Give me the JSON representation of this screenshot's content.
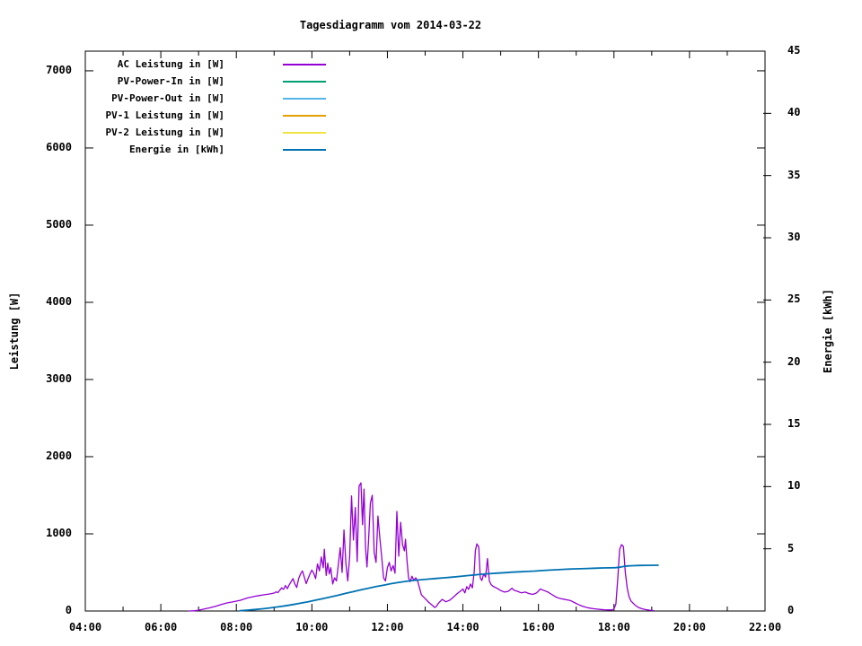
{
  "chart_data": {
    "type": "line",
    "title": "Tagesdiagramm vom 2014-03-22",
    "x_axis": {
      "range_hours": [
        4,
        22
      ],
      "major_tick_step_hours": 2,
      "minor_tick_step_hours": 1,
      "tick_labels": [
        "04:00",
        "06:00",
        "08:00",
        "10:00",
        "12:00",
        "14:00",
        "16:00",
        "18:00",
        "20:00",
        "22:00"
      ]
    },
    "y1_axis": {
      "title": "Leistung [W]",
      "range": [
        0,
        7255
      ],
      "tick_step": 1000,
      "tick_labels": [
        "0",
        "1000",
        "2000",
        "3000",
        "4000",
        "5000",
        "6000",
        "7000"
      ]
    },
    "y2_axis": {
      "title": "Energie [kWh]",
      "range": [
        0,
        45
      ],
      "tick_step": 5,
      "tick_labels": [
        "0",
        "5",
        "10",
        "15",
        "20",
        "25",
        "30",
        "35",
        "40",
        "45"
      ]
    },
    "legend": {
      "position": "top-left-inside",
      "entries": [
        {
          "label": "AC Leistung in [W]",
          "color": "#9400d3"
        },
        {
          "label": "PV-Power-In in [W]",
          "color": "#009e73"
        },
        {
          "label": "PV-Power-Out in [W]",
          "color": "#56b4e9"
        },
        {
          "label": "PV-1 Leistung in [W]",
          "color": "#e69f00"
        },
        {
          "label": "PV-2 Leistung in [W]",
          "color": "#f0e442"
        },
        {
          "label": "Energie in [kWh]",
          "color": "#0072b2"
        }
      ]
    },
    "series": [
      {
        "name": "AC Leistung in [W]",
        "axis": "y1",
        "color": "#9400d3",
        "points": [
          [
            6.75,
            0
          ],
          [
            6.9,
            4
          ],
          [
            7.0,
            10
          ],
          [
            7.15,
            25
          ],
          [
            7.3,
            42
          ],
          [
            7.45,
            62
          ],
          [
            7.6,
            85
          ],
          [
            7.75,
            105
          ],
          [
            7.9,
            118
          ],
          [
            8.0,
            128
          ],
          [
            8.1,
            138
          ],
          [
            8.2,
            155
          ],
          [
            8.3,
            170
          ],
          [
            8.4,
            180
          ],
          [
            8.5,
            192
          ],
          [
            8.6,
            200
          ],
          [
            8.7,
            208
          ],
          [
            8.8,
            215
          ],
          [
            8.9,
            222
          ],
          [
            9.0,
            232
          ],
          [
            9.05,
            248
          ],
          [
            9.1,
            238
          ],
          [
            9.15,
            268
          ],
          [
            9.2,
            300
          ],
          [
            9.25,
            280
          ],
          [
            9.3,
            330
          ],
          [
            9.35,
            290
          ],
          [
            9.4,
            340
          ],
          [
            9.45,
            380
          ],
          [
            9.5,
            420
          ],
          [
            9.55,
            350
          ],
          [
            9.6,
            305
          ],
          [
            9.65,
            420
          ],
          [
            9.7,
            480
          ],
          [
            9.75,
            520
          ],
          [
            9.8,
            440
          ],
          [
            9.85,
            355
          ],
          [
            9.9,
            420
          ],
          [
            9.95,
            480
          ],
          [
            10.0,
            530
          ],
          [
            10.05,
            490
          ],
          [
            10.1,
            420
          ],
          [
            10.15,
            610
          ],
          [
            10.2,
            520
          ],
          [
            10.25,
            700
          ],
          [
            10.3,
            560
          ],
          [
            10.33,
            800
          ],
          [
            10.38,
            460
          ],
          [
            10.42,
            620
          ],
          [
            10.46,
            480
          ],
          [
            10.5,
            560
          ],
          [
            10.55,
            350
          ],
          [
            10.6,
            430
          ],
          [
            10.65,
            390
          ],
          [
            10.7,
            600
          ],
          [
            10.75,
            820
          ],
          [
            10.8,
            500
          ],
          [
            10.85,
            1050
          ],
          [
            10.9,
            620
          ],
          [
            10.95,
            390
          ],
          [
            11.0,
            700
          ],
          [
            11.05,
            1490
          ],
          [
            11.1,
            920
          ],
          [
            11.15,
            1340
          ],
          [
            11.2,
            640
          ],
          [
            11.25,
            1620
          ],
          [
            11.3,
            1660
          ],
          [
            11.34,
            1120
          ],
          [
            11.38,
            1580
          ],
          [
            11.42,
            820
          ],
          [
            11.46,
            570
          ],
          [
            11.5,
            900
          ],
          [
            11.55,
            1400
          ],
          [
            11.6,
            1500
          ],
          [
            11.65,
            760
          ],
          [
            11.7,
            630
          ],
          [
            11.75,
            1230
          ],
          [
            11.8,
            950
          ],
          [
            11.85,
            700
          ],
          [
            11.9,
            430
          ],
          [
            11.95,
            390
          ],
          [
            12.0,
            560
          ],
          [
            12.05,
            630
          ],
          [
            12.1,
            520
          ],
          [
            12.15,
            590
          ],
          [
            12.2,
            490
          ],
          [
            12.25,
            1290
          ],
          [
            12.3,
            710
          ],
          [
            12.35,
            1150
          ],
          [
            12.4,
            860
          ],
          [
            12.45,
            780
          ],
          [
            12.48,
            930
          ],
          [
            12.52,
            650
          ],
          [
            12.56,
            430
          ],
          [
            12.6,
            380
          ],
          [
            12.65,
            450
          ],
          [
            12.7,
            400
          ],
          [
            12.75,
            430
          ],
          [
            12.8,
            390
          ],
          [
            12.85,
            300
          ],
          [
            12.9,
            210
          ],
          [
            13.0,
            160
          ],
          [
            13.1,
            110
          ],
          [
            13.2,
            70
          ],
          [
            13.25,
            45
          ],
          [
            13.3,
            60
          ],
          [
            13.35,
            100
          ],
          [
            13.45,
            150
          ],
          [
            13.55,
            120
          ],
          [
            13.65,
            140
          ],
          [
            13.75,
            180
          ],
          [
            13.85,
            225
          ],
          [
            13.95,
            265
          ],
          [
            14.0,
            285
          ],
          [
            14.05,
            235
          ],
          [
            14.1,
            315
          ],
          [
            14.15,
            280
          ],
          [
            14.2,
            350
          ],
          [
            14.25,
            300
          ],
          [
            14.3,
            520
          ],
          [
            14.33,
            780
          ],
          [
            14.37,
            870
          ],
          [
            14.42,
            830
          ],
          [
            14.46,
            430
          ],
          [
            14.5,
            395
          ],
          [
            14.55,
            480
          ],
          [
            14.6,
            440
          ],
          [
            14.65,
            680
          ],
          [
            14.7,
            390
          ],
          [
            14.75,
            340
          ],
          [
            14.8,
            320
          ],
          [
            14.9,
            295
          ],
          [
            15.0,
            265
          ],
          [
            15.1,
            245
          ],
          [
            15.2,
            255
          ],
          [
            15.3,
            295
          ],
          [
            15.35,
            270
          ],
          [
            15.45,
            255
          ],
          [
            15.55,
            235
          ],
          [
            15.65,
            245
          ],
          [
            15.75,
            225
          ],
          [
            15.85,
            215
          ],
          [
            15.95,
            235
          ],
          [
            16.05,
            285
          ],
          [
            16.15,
            265
          ],
          [
            16.25,
            245
          ],
          [
            16.35,
            215
          ],
          [
            16.45,
            185
          ],
          [
            16.55,
            165
          ],
          [
            16.65,
            155
          ],
          [
            16.75,
            145
          ],
          [
            16.85,
            135
          ],
          [
            16.95,
            110
          ],
          [
            17.05,
            85
          ],
          [
            17.15,
            65
          ],
          [
            17.25,
            50
          ],
          [
            17.35,
            38
          ],
          [
            17.45,
            30
          ],
          [
            17.55,
            24
          ],
          [
            17.65,
            20
          ],
          [
            17.75,
            16
          ],
          [
            17.85,
            14
          ],
          [
            17.95,
            14
          ],
          [
            18.0,
            25
          ],
          [
            18.05,
            90
          ],
          [
            18.1,
            420
          ],
          [
            18.15,
            800
          ],
          [
            18.2,
            860
          ],
          [
            18.25,
            835
          ],
          [
            18.3,
            500
          ],
          [
            18.35,
            300
          ],
          [
            18.4,
            185
          ],
          [
            18.45,
            130
          ],
          [
            18.55,
            80
          ],
          [
            18.65,
            45
          ],
          [
            18.75,
            28
          ],
          [
            18.85,
            18
          ],
          [
            18.95,
            10
          ],
          [
            19.05,
            6
          ]
        ]
      },
      {
        "name": "PV-Power-In in [W]",
        "axis": "y1",
        "color": "#009e73",
        "points": []
      },
      {
        "name": "PV-Power-Out in [W]",
        "axis": "y1",
        "color": "#56b4e9",
        "points": []
      },
      {
        "name": "PV-1 Leistung in [W]",
        "axis": "y1",
        "color": "#e69f00",
        "points": []
      },
      {
        "name": "PV-2 Leistung in [W]",
        "axis": "y1",
        "color": "#f0e442",
        "points": []
      },
      {
        "name": "Energie in [kWh]",
        "axis": "y2",
        "color": "#0072b2",
        "points": [
          [
            8.1,
            0.02
          ],
          [
            8.3,
            0.07
          ],
          [
            8.5,
            0.12
          ],
          [
            8.7,
            0.18
          ],
          [
            8.9,
            0.25
          ],
          [
            9.1,
            0.33
          ],
          [
            9.3,
            0.42
          ],
          [
            9.5,
            0.52
          ],
          [
            9.7,
            0.63
          ],
          [
            9.9,
            0.74
          ],
          [
            10.1,
            0.87
          ],
          [
            10.3,
            1.0
          ],
          [
            10.5,
            1.13
          ],
          [
            10.7,
            1.27
          ],
          [
            10.9,
            1.42
          ],
          [
            11.1,
            1.56
          ],
          [
            11.3,
            1.7
          ],
          [
            11.5,
            1.83
          ],
          [
            11.7,
            1.96
          ],
          [
            11.9,
            2.08
          ],
          [
            12.1,
            2.2
          ],
          [
            12.3,
            2.3
          ],
          [
            12.5,
            2.39
          ],
          [
            12.7,
            2.46
          ],
          [
            12.9,
            2.52
          ],
          [
            13.1,
            2.57
          ],
          [
            13.3,
            2.62
          ],
          [
            13.5,
            2.67
          ],
          [
            13.7,
            2.72
          ],
          [
            13.9,
            2.78
          ],
          [
            14.1,
            2.84
          ],
          [
            14.3,
            2.9
          ],
          [
            14.5,
            2.96
          ],
          [
            14.7,
            3.0
          ],
          [
            14.9,
            3.04
          ],
          [
            15.1,
            3.08
          ],
          [
            15.3,
            3.12
          ],
          [
            15.5,
            3.15
          ],
          [
            15.7,
            3.18
          ],
          [
            15.9,
            3.21
          ],
          [
            16.1,
            3.25
          ],
          [
            16.3,
            3.29
          ],
          [
            16.5,
            3.32
          ],
          [
            16.7,
            3.35
          ],
          [
            16.9,
            3.38
          ],
          [
            17.1,
            3.4
          ],
          [
            17.3,
            3.42
          ],
          [
            17.5,
            3.44
          ],
          [
            17.7,
            3.46
          ],
          [
            17.9,
            3.47
          ],
          [
            18.05,
            3.48
          ],
          [
            18.15,
            3.52
          ],
          [
            18.25,
            3.58
          ],
          [
            18.35,
            3.62
          ],
          [
            18.5,
            3.64
          ],
          [
            18.7,
            3.66
          ],
          [
            18.9,
            3.67
          ],
          [
            19.1,
            3.68
          ],
          [
            19.17,
            3.68
          ]
        ]
      }
    ],
    "colors": {
      "text": "#000000",
      "background": "#ffffff",
      "border": "#000000"
    }
  }
}
